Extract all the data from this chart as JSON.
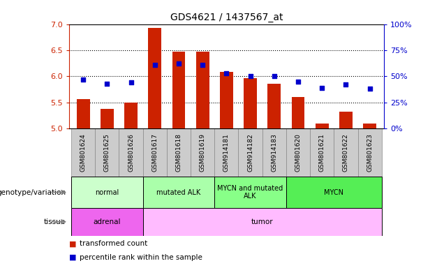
{
  "title": "GDS4621 / 1437567_at",
  "samples": [
    "GSM801624",
    "GSM801625",
    "GSM801626",
    "GSM801617",
    "GSM801618",
    "GSM801619",
    "GSM914181",
    "GSM914182",
    "GSM914183",
    "GSM801620",
    "GSM801621",
    "GSM801622",
    "GSM801623"
  ],
  "bar_values": [
    5.56,
    5.38,
    5.5,
    6.93,
    6.47,
    6.47,
    6.08,
    5.97,
    5.86,
    5.61,
    5.1,
    5.32,
    5.1
  ],
  "dot_values": [
    47,
    43,
    44,
    61,
    62,
    61,
    53,
    50,
    50,
    45,
    39,
    42,
    38
  ],
  "ylim_left": [
    5.0,
    7.0
  ],
  "ylim_right": [
    0,
    100
  ],
  "yticks_left": [
    5.0,
    5.5,
    6.0,
    6.5,
    7.0
  ],
  "yticks_right": [
    0,
    25,
    50,
    75,
    100
  ],
  "ytick_labels_right": [
    "0%",
    "25%",
    "50%",
    "75%",
    "100%"
  ],
  "hlines": [
    5.5,
    6.0,
    6.5
  ],
  "bar_color": "#cc2200",
  "dot_color": "#0000cc",
  "bar_bottom": 5.0,
  "genotype_groups": [
    {
      "label": "normal",
      "start": 0,
      "end": 3,
      "color": "#ccffcc"
    },
    {
      "label": "mutated ALK",
      "start": 3,
      "end": 6,
      "color": "#aaffaa"
    },
    {
      "label": "MYCN and mutated\nALK",
      "start": 6,
      "end": 9,
      "color": "#88ff88"
    },
    {
      "label": "MYCN",
      "start": 9,
      "end": 13,
      "color": "#55ee55"
    }
  ],
  "tissue_groups": [
    {
      "label": "adrenal",
      "start": 0,
      "end": 3,
      "color": "#ee66ee"
    },
    {
      "label": "tumor",
      "start": 3,
      "end": 13,
      "color": "#ffbbff"
    }
  ],
  "legend_items": [
    {
      "label": "transformed count",
      "color": "#cc2200"
    },
    {
      "label": "percentile rank within the sample",
      "color": "#0000cc"
    }
  ],
  "left_tick_color": "#cc2200",
  "right_tick_color": "#0000cc",
  "genotype_label": "genotype/variation",
  "tissue_label": "tissue",
  "xtick_bg_color": "#cccccc",
  "xtick_border_color": "#888888"
}
